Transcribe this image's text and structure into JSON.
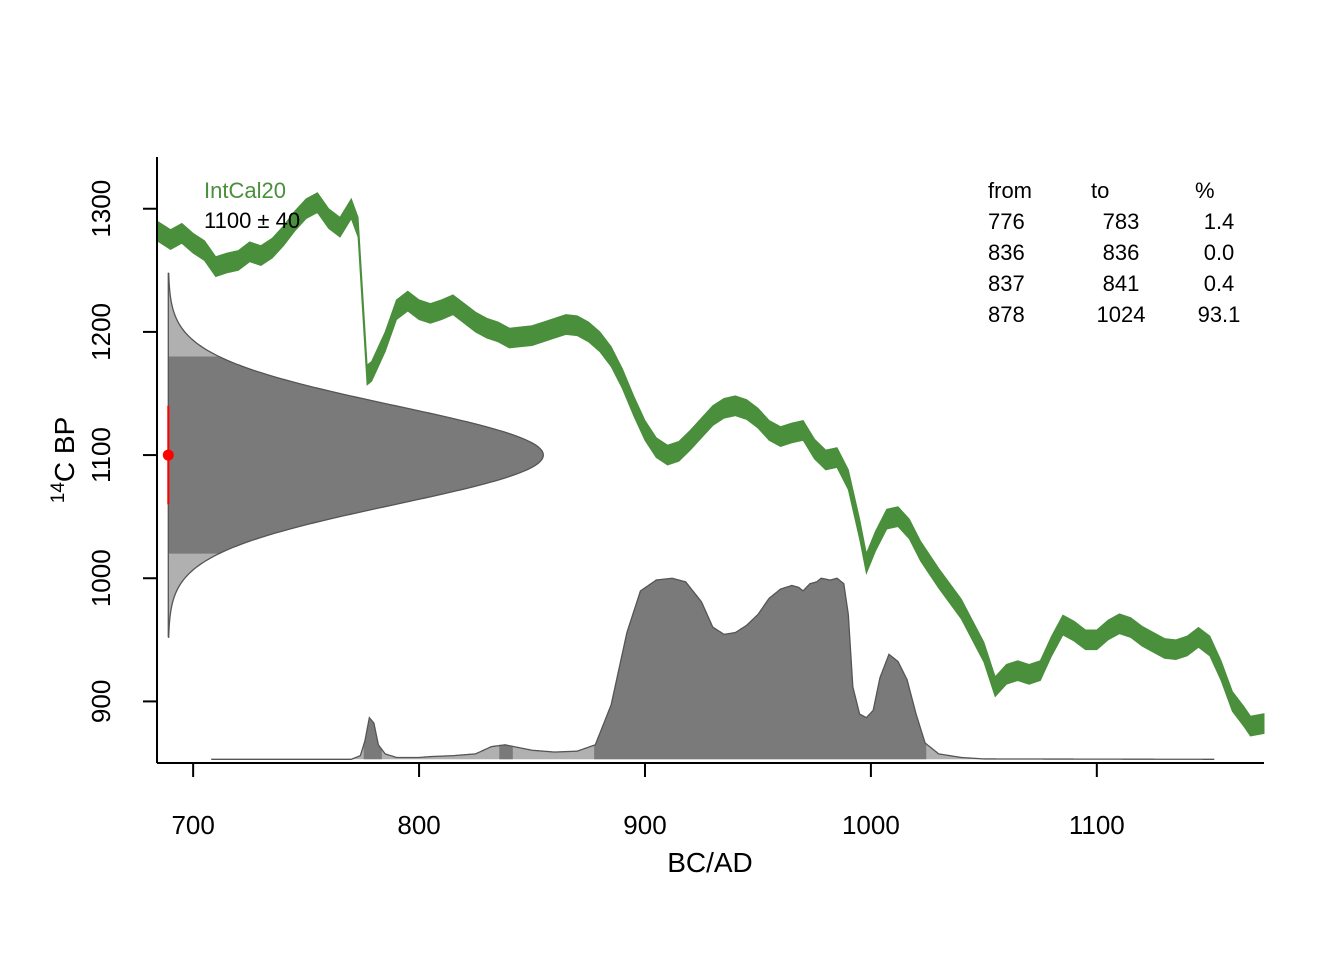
{
  "chart_data": {
    "type": "area",
    "xlabel": "BC/AD",
    "ylabel_main": "C BP",
    "ylabel_superscript": "14",
    "xlim": [
      684,
      1174
    ],
    "ylim": [
      850,
      1342
    ],
    "x_ticks": [
      700,
      800,
      900,
      1000,
      1100
    ],
    "y_ticks": [
      900,
      1000,
      1100,
      1200,
      1300
    ],
    "colors": {
      "curve": "#4a8f3c",
      "curve_label": "#4a8f3c",
      "dark_fill": "#7a7a7a",
      "light_fill": "#b0b0b0",
      "outline": "#555555",
      "measurement": "#ff0000"
    },
    "legend_placement": "top-left",
    "calibration_curve": {
      "name": "IntCal20",
      "points": [
        [
          684,
          1282
        ],
        [
          690,
          1275
        ],
        [
          695,
          1280
        ],
        [
          700,
          1272
        ],
        [
          705,
          1266
        ],
        [
          710,
          1253
        ],
        [
          715,
          1256
        ],
        [
          720,
          1258
        ],
        [
          725,
          1265
        ],
        [
          730,
          1262
        ],
        [
          735,
          1268
        ],
        [
          740,
          1278
        ],
        [
          745,
          1290
        ],
        [
          750,
          1300
        ],
        [
          755,
          1305
        ],
        [
          760,
          1292
        ],
        [
          765,
          1285
        ],
        [
          770,
          1300
        ],
        [
          773,
          1285
        ],
        [
          775,
          1225
        ],
        [
          777,
          1165
        ],
        [
          779,
          1168
        ],
        [
          785,
          1192
        ],
        [
          790,
          1218
        ],
        [
          795,
          1225
        ],
        [
          800,
          1218
        ],
        [
          805,
          1215
        ],
        [
          810,
          1218
        ],
        [
          815,
          1222
        ],
        [
          820,
          1215
        ],
        [
          825,
          1208
        ],
        [
          830,
          1203
        ],
        [
          835,
          1200
        ],
        [
          840,
          1195
        ],
        [
          845,
          1196
        ],
        [
          850,
          1197
        ],
        [
          855,
          1200
        ],
        [
          860,
          1203
        ],
        [
          865,
          1206
        ],
        [
          870,
          1205
        ],
        [
          875,
          1200
        ],
        [
          880,
          1192
        ],
        [
          885,
          1180
        ],
        [
          890,
          1162
        ],
        [
          895,
          1140
        ],
        [
          900,
          1120
        ],
        [
          905,
          1106
        ],
        [
          910,
          1100
        ],
        [
          915,
          1103
        ],
        [
          920,
          1112
        ],
        [
          925,
          1122
        ],
        [
          930,
          1132
        ],
        [
          935,
          1138
        ],
        [
          940,
          1140
        ],
        [
          945,
          1137
        ],
        [
          950,
          1130
        ],
        [
          955,
          1120
        ],
        [
          960,
          1115
        ],
        [
          965,
          1118
        ],
        [
          970,
          1120
        ],
        [
          975,
          1105
        ],
        [
          980,
          1096
        ],
        [
          985,
          1098
        ],
        [
          990,
          1080
        ],
        [
          995,
          1040
        ],
        [
          998,
          1012
        ],
        [
          1002,
          1030
        ],
        [
          1007,
          1048
        ],
        [
          1012,
          1050
        ],
        [
          1017,
          1040
        ],
        [
          1022,
          1022
        ],
        [
          1030,
          1000
        ],
        [
          1040,
          975
        ],
        [
          1050,
          940
        ],
        [
          1055,
          912
        ],
        [
          1060,
          922
        ],
        [
          1065,
          925
        ],
        [
          1070,
          922
        ],
        [
          1075,
          925
        ],
        [
          1080,
          945
        ],
        [
          1085,
          962
        ],
        [
          1090,
          957
        ],
        [
          1095,
          950
        ],
        [
          1100,
          950
        ],
        [
          1105,
          958
        ],
        [
          1110,
          963
        ],
        [
          1115,
          960
        ],
        [
          1120,
          953
        ],
        [
          1125,
          948
        ],
        [
          1130,
          943
        ],
        [
          1135,
          942
        ],
        [
          1140,
          945
        ],
        [
          1145,
          952
        ],
        [
          1150,
          945
        ],
        [
          1155,
          925
        ],
        [
          1160,
          900
        ],
        [
          1165,
          888
        ],
        [
          1168,
          880
        ],
        [
          1174,
          882
        ]
      ],
      "band_halfwidth_14C": 8
    },
    "measurement": {
      "label": "1100 ± 40",
      "mean": 1100,
      "sd": 40
    },
    "ranges_table": {
      "headers": [
        "from",
        "to",
        "%"
      ],
      "rows": [
        [
          "776",
          "783",
          "1.4"
        ],
        [
          "836",
          "836",
          "0.0"
        ],
        [
          "837",
          "841",
          "0.4"
        ],
        [
          "878",
          "1024",
          "93.1"
        ]
      ]
    },
    "hpd_ranges": [
      [
        776,
        783
      ],
      [
        836,
        836
      ],
      [
        837,
        841
      ],
      [
        878,
        1024
      ]
    ],
    "calibrated_distribution": [
      [
        708,
        0
      ],
      [
        770,
        0
      ],
      [
        774,
        0.02
      ],
      [
        776,
        0.1
      ],
      [
        778,
        0.23
      ],
      [
        780,
        0.2
      ],
      [
        782,
        0.08
      ],
      [
        785,
        0.03
      ],
      [
        790,
        0.01
      ],
      [
        800,
        0.01
      ],
      [
        805,
        0.015
      ],
      [
        815,
        0.02
      ],
      [
        825,
        0.03
      ],
      [
        832,
        0.07
      ],
      [
        838,
        0.08
      ],
      [
        842,
        0.07
      ],
      [
        850,
        0.05
      ],
      [
        860,
        0.04
      ],
      [
        870,
        0.045
      ],
      [
        878,
        0.08
      ],
      [
        885,
        0.3
      ],
      [
        892,
        0.7
      ],
      [
        898,
        0.93
      ],
      [
        905,
        0.99
      ],
      [
        912,
        1.0
      ],
      [
        918,
        0.98
      ],
      [
        925,
        0.87
      ],
      [
        930,
        0.73
      ],
      [
        935,
        0.69
      ],
      [
        940,
        0.7
      ],
      [
        945,
        0.74
      ],
      [
        950,
        0.8
      ],
      [
        955,
        0.89
      ],
      [
        960,
        0.94
      ],
      [
        965,
        0.96
      ],
      [
        968,
        0.95
      ],
      [
        970,
        0.93
      ],
      [
        973,
        0.97
      ],
      [
        976,
        0.98
      ],
      [
        978,
        1.0
      ],
      [
        982,
        0.99
      ],
      [
        985,
        1.0
      ],
      [
        988,
        0.97
      ],
      [
        990,
        0.8
      ],
      [
        992,
        0.4
      ],
      [
        995,
        0.25
      ],
      [
        998,
        0.23
      ],
      [
        1001,
        0.27
      ],
      [
        1004,
        0.45
      ],
      [
        1008,
        0.58
      ],
      [
        1012,
        0.54
      ],
      [
        1016,
        0.44
      ],
      [
        1020,
        0.25
      ],
      [
        1024,
        0.09
      ],
      [
        1030,
        0.03
      ],
      [
        1040,
        0.01
      ],
      [
        1050,
        0.002
      ],
      [
        1100,
        0.001
      ],
      [
        1152,
        0
      ]
    ]
  }
}
